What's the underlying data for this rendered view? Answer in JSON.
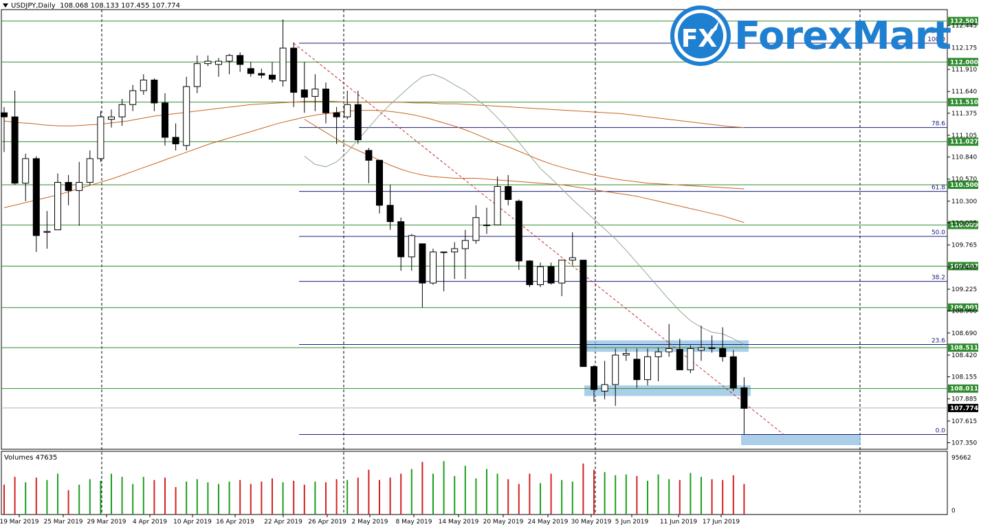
{
  "header": {
    "symbol": "USDJPY,Daily",
    "ohlc": "108.068 108.133 107.455 107.774"
  },
  "logo": {
    "text": "ForexMart",
    "mark": "FX"
  },
  "volume": {
    "label": "Volumes 47635",
    "axis_top": "95662",
    "axis_bottom": "0"
  },
  "colors": {
    "bull_volume": "#1a9e1a",
    "bear_volume": "#d42020",
    "level_line": "#2e8b2e",
    "fib_line": "#1a1a7a",
    "ma_slow": "#c8641e",
    "ma_fast": "#8fa88f",
    "zone": "#8fbfe0",
    "logo_blue": "#1f7fd0"
  },
  "chart_data": {
    "type": "candlestick",
    "price_axis_ticks": [
      "112.445",
      "112.175",
      "111.910",
      "111.640",
      "111.375",
      "111.105",
      "110.840",
      "110.570",
      "110.300",
      "110.035",
      "109.765",
      "109.495",
      "109.225",
      "108.960",
      "108.690",
      "108.420",
      "108.155",
      "107.885",
      "107.615",
      "107.350"
    ],
    "support_resistance": [
      "112.501",
      "112.000",
      "111.510",
      "111.027",
      "110.500",
      "110.009",
      "109.507",
      "109.001",
      "108.511",
      "108.011"
    ],
    "current_price": "107.774",
    "fibonacci": [
      {
        "label": "100.0",
        "price": 112.23
      },
      {
        "label": "78.6",
        "price": 111.2
      },
      {
        "label": "61.8",
        "price": 110.42
      },
      {
        "label": "50.0",
        "price": 109.87
      },
      {
        "label": "38.2",
        "price": 109.32
      },
      {
        "label": "23.6",
        "price": 108.55
      },
      {
        "label": "0.0",
        "price": 107.45
      }
    ],
    "x_labels": [
      "19 Mar 2019",
      "25 Mar 2019",
      "29 Mar 2019",
      "4 Apr 2019",
      "10 Apr 2019",
      "16 Apr 2019",
      "22 Apr 2019",
      "26 Apr 2019",
      "2 May 2019",
      "8 May 2019",
      "14 May 2019",
      "20 May 2019",
      "24 May 2019",
      "30 May 2019",
      "5 Jun 2019",
      "11 Jun 2019",
      "17 Jun 2019"
    ],
    "candles": [
      [
        111.38,
        111.45,
        110.9,
        111.33
      ],
      [
        111.33,
        111.65,
        110.5,
        110.52
      ],
      [
        110.52,
        110.88,
        110.3,
        110.82
      ],
      [
        110.82,
        110.85,
        109.68,
        109.88
      ],
      [
        109.92,
        110.18,
        109.72,
        109.93
      ],
      [
        109.95,
        110.64,
        109.95,
        110.53
      ],
      [
        110.53,
        110.62,
        110.25,
        110.43
      ],
      [
        110.43,
        110.78,
        110.0,
        110.53
      ],
      [
        110.53,
        110.92,
        110.5,
        110.82
      ],
      [
        110.82,
        111.4,
        110.78,
        111.33
      ],
      [
        111.3,
        111.42,
        111.2,
        111.33
      ],
      [
        111.33,
        111.55,
        111.22,
        111.48
      ],
      [
        111.48,
        111.72,
        111.4,
        111.65
      ],
      [
        111.65,
        111.85,
        111.6,
        111.78
      ],
      [
        111.78,
        111.8,
        111.4,
        111.5
      ],
      [
        111.5,
        111.62,
        110.98,
        111.08
      ],
      [
        111.08,
        111.25,
        110.92,
        111.0
      ],
      [
        110.98,
        111.82,
        110.92,
        111.7
      ],
      [
        111.7,
        112.08,
        111.62,
        111.98
      ],
      [
        111.98,
        112.08,
        111.95,
        112.01
      ],
      [
        111.97,
        112.05,
        111.82,
        112.01
      ],
      [
        112.01,
        112.1,
        111.85,
        112.08
      ],
      [
        112.08,
        112.12,
        111.88,
        111.97
      ],
      [
        111.92,
        112.0,
        111.82,
        111.86
      ],
      [
        111.86,
        111.92,
        111.8,
        111.84
      ],
      [
        111.84,
        112.0,
        111.75,
        111.79
      ],
      [
        111.77,
        112.52,
        111.7,
        112.17
      ],
      [
        112.17,
        112.24,
        111.45,
        111.63
      ],
      [
        111.66,
        112.0,
        111.38,
        111.57
      ],
      [
        111.58,
        111.85,
        111.4,
        111.67
      ],
      [
        111.67,
        111.75,
        111.25,
        111.38
      ],
      [
        111.38,
        111.45,
        111.0,
        111.33
      ],
      [
        111.33,
        111.65,
        111.3,
        111.48
      ],
      [
        111.48,
        111.65,
        111.0,
        111.05
      ],
      [
        110.92,
        110.95,
        110.52,
        110.8
      ],
      [
        110.8,
        110.8,
        110.15,
        110.25
      ],
      [
        110.25,
        110.5,
        109.95,
        110.05
      ],
      [
        110.05,
        110.1,
        109.45,
        109.62
      ],
      [
        109.62,
        109.9,
        109.45,
        109.88
      ],
      [
        109.78,
        109.78,
        109.0,
        109.3
      ],
      [
        109.3,
        109.72,
        109.28,
        109.68
      ],
      [
        109.68,
        109.68,
        109.2,
        109.68
      ],
      [
        109.68,
        109.8,
        109.35,
        109.72
      ],
      [
        109.72,
        109.95,
        109.35,
        109.82
      ],
      [
        109.82,
        110.25,
        109.78,
        110.1
      ],
      [
        110.01,
        110.22,
        109.9,
        110.01
      ],
      [
        110.01,
        110.6,
        110.01,
        110.48
      ],
      [
        110.48,
        110.62,
        110.25,
        110.32
      ],
      [
        110.3,
        110.32,
        109.46,
        109.57
      ],
      [
        109.57,
        109.58,
        109.25,
        109.28
      ],
      [
        109.28,
        109.55,
        109.25,
        109.5
      ],
      [
        109.5,
        109.55,
        109.28,
        109.3
      ],
      [
        109.3,
        109.58,
        109.14,
        109.58
      ],
      [
        109.58,
        109.92,
        109.52,
        109.61
      ],
      [
        109.58,
        109.58,
        108.28,
        108.28
      ],
      [
        108.28,
        108.3,
        107.85,
        108.0
      ],
      [
        107.98,
        108.35,
        107.88,
        108.06
      ],
      [
        108.06,
        108.5,
        107.8,
        108.42
      ],
      [
        108.42,
        108.5,
        108.35,
        108.44
      ],
      [
        108.37,
        108.5,
        108.02,
        108.12
      ],
      [
        108.12,
        108.5,
        108.05,
        108.4
      ],
      [
        108.4,
        108.51,
        108.1,
        108.46
      ],
      [
        108.46,
        108.8,
        108.4,
        108.5
      ],
      [
        108.49,
        108.62,
        108.25,
        108.24
      ],
      [
        108.24,
        108.54,
        108.2,
        108.5
      ],
      [
        108.48,
        108.78,
        108.35,
        108.51
      ],
      [
        108.51,
        108.66,
        108.45,
        108.5
      ],
      [
        108.5,
        108.76,
        108.34,
        108.4
      ],
      [
        108.4,
        108.48,
        107.98,
        108.02
      ],
      [
        108.02,
        108.15,
        107.45,
        107.77
      ]
    ],
    "volumes": [
      38,
      48,
      41,
      47,
      44,
      52,
      31,
      38,
      45,
      43,
      52,
      48,
      39,
      48,
      44,
      47,
      35,
      42,
      45,
      41,
      39,
      42,
      44,
      39,
      42,
      46,
      41,
      43,
      38,
      42,
      41,
      45,
      44,
      47,
      57,
      44,
      47,
      52,
      58,
      67,
      52,
      68,
      49,
      62,
      46,
      58,
      52,
      45,
      39,
      52,
      40,
      52,
      44,
      42,
      65,
      57,
      54,
      50,
      51,
      49,
      43,
      51,
      45,
      44,
      53,
      48,
      45,
      44,
      50,
      39
    ],
    "series": [
      {
        "name": "MA",
        "values": [
          111.28,
          111.26,
          111.25,
          111.23,
          111.22,
          111.22,
          111.23,
          111.24,
          111.26,
          111.28,
          111.31,
          111.34,
          111.36,
          111.38,
          111.4,
          111.42,
          111.44,
          111.46,
          111.48,
          111.49,
          111.5,
          111.51,
          111.52,
          111.52,
          111.52,
          111.51,
          111.51,
          111.51,
          111.51,
          111.51,
          111.5,
          111.5,
          111.49,
          111.49,
          111.48,
          111.47,
          111.46,
          111.45,
          111.44,
          111.43,
          111.42,
          111.41,
          111.4,
          111.39,
          111.38,
          111.37,
          111.35,
          111.33,
          111.31,
          111.29,
          111.27,
          111.25,
          111.23,
          111.21,
          111.2
        ]
      },
      {
        "name": "MA",
        "values": [
          110.22,
          110.26,
          110.3,
          110.34,
          110.38,
          110.43,
          110.48,
          110.53,
          110.58,
          110.64,
          110.7,
          110.76,
          110.82,
          110.88,
          110.94,
          111.0,
          111.05,
          111.1,
          111.15,
          111.2,
          111.25,
          111.29,
          111.33,
          111.36,
          111.38,
          111.4,
          111.41,
          111.41,
          111.4,
          111.38,
          111.35,
          111.31,
          111.26,
          111.21,
          111.15,
          111.08,
          111.01,
          110.95,
          110.88,
          110.81,
          110.75,
          110.7,
          110.66,
          110.62,
          110.59,
          110.56,
          110.54,
          110.52,
          110.51,
          110.5,
          110.49,
          110.48,
          110.47,
          110.46,
          110.45
        ]
      },
      {
        "name": "MA",
        "values": [
          111.3,
          111.22,
          111.14,
          111.06,
          110.98,
          110.92,
          110.86,
          110.8,
          110.74,
          110.69,
          110.65,
          110.62,
          110.6,
          110.59,
          110.58,
          110.58,
          110.58,
          110.57,
          110.56,
          110.55,
          110.54,
          110.53,
          110.52,
          110.51,
          110.5,
          110.48,
          110.46,
          110.44,
          110.42,
          110.4,
          110.38,
          110.36,
          110.33,
          110.3,
          110.27,
          110.24,
          110.21,
          110.18,
          110.15,
          110.12,
          110.08,
          110.04
        ]
      },
      {
        "name": "MA",
        "values": [
          110.85,
          110.75,
          110.72,
          110.78,
          110.9,
          111.05,
          111.2,
          111.35,
          111.48,
          111.6,
          111.72,
          111.82,
          111.85,
          111.8,
          111.72,
          111.65,
          111.55,
          111.45,
          111.32,
          111.18,
          111.02,
          110.86,
          110.7,
          110.58,
          110.45,
          110.32,
          110.2,
          110.08,
          109.96,
          109.84,
          109.7,
          109.55,
          109.4,
          109.25,
          109.1,
          108.96,
          108.84,
          108.76,
          108.7,
          108.68,
          108.62,
          108.55
        ]
      }
    ]
  }
}
